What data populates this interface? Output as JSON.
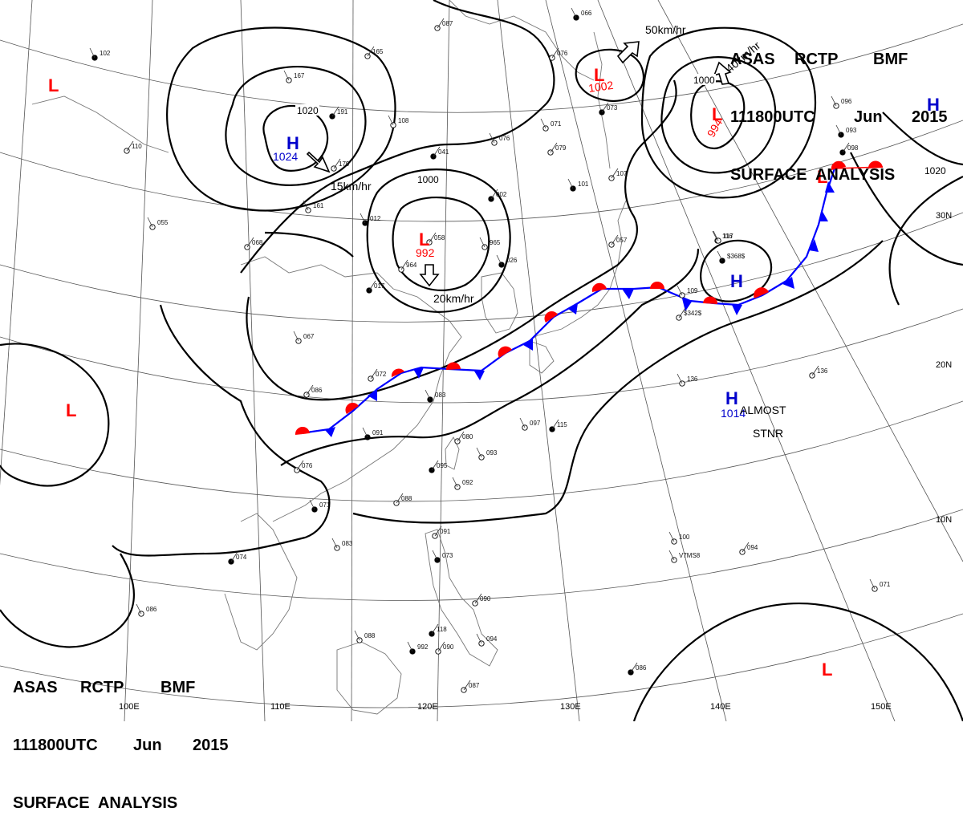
{
  "header": {
    "line1": [
      "ASAS",
      "RCTP",
      "BMF"
    ],
    "line2": [
      "111800UTC",
      "Jun",
      "2015"
    ],
    "line3": "SURFACE  ANALYSIS"
  },
  "colors": {
    "high": "#0000cc",
    "low": "#ff0000",
    "warm_front": "#ff0000",
    "cold_front": "#0000ff",
    "isobar": "#000000",
    "grid": "#555555",
    "coast": "#777777"
  },
  "grid_labels": {
    "lon": [
      "100E",
      "110E",
      "120E",
      "130E",
      "140E",
      "150E"
    ],
    "lat": [
      "30N",
      "20N",
      "10N"
    ]
  },
  "pressure_centers": [
    {
      "id": "high-1024",
      "type": "H",
      "value": "1024"
    },
    {
      "id": "low-992",
      "type": "L",
      "value": "992"
    },
    {
      "id": "low-1002",
      "type": "L",
      "value": "1002"
    },
    {
      "id": "low-994",
      "type": "L",
      "value": "994"
    },
    {
      "id": "high-1014",
      "type": "H",
      "value": "1014"
    },
    {
      "id": "high-east",
      "type": "H",
      "value": ""
    },
    {
      "id": "high-japan",
      "type": "H",
      "value": ""
    },
    {
      "id": "low-west-top",
      "type": "L",
      "value": ""
    },
    {
      "id": "low-west",
      "type": "L",
      "value": ""
    },
    {
      "id": "low-southeast",
      "type": "L",
      "value": ""
    },
    {
      "id": "low-front-wave",
      "type": "L",
      "value": ""
    }
  ],
  "isobar_labels": [
    "1020",
    "1000",
    "1000",
    "1020"
  ],
  "motion_labels": [
    "15km/hr",
    "20km/hr",
    "50km/hr",
    "40km/hr"
  ],
  "annotations": {
    "almost": "ALMOST",
    "stnr": "STNR"
  },
  "station_labels": [
    "102",
    "165",
    "167",
    "191",
    "108",
    "087",
    "066",
    "076",
    "071",
    "073",
    "096",
    "110",
    "093",
    "179",
    "161",
    "041",
    "076",
    "079",
    "101",
    "107",
    "116",
    "098",
    "055",
    "068",
    "012",
    "058",
    "965",
    "002",
    "117",
    "964",
    "026",
    "057",
    "109",
    "017",
    "067",
    "072",
    "083",
    "086",
    "097",
    "115",
    "136",
    "136",
    "091",
    "080",
    "093",
    "095",
    "092",
    "076",
    "071",
    "088",
    "083",
    "074",
    "086",
    "091",
    "073",
    "090",
    "088",
    "118",
    "094",
    "090",
    "992",
    "087",
    "071",
    "086",
    "100",
    "094",
    "$368$",
    "$342$",
    "V7MS8"
  ]
}
